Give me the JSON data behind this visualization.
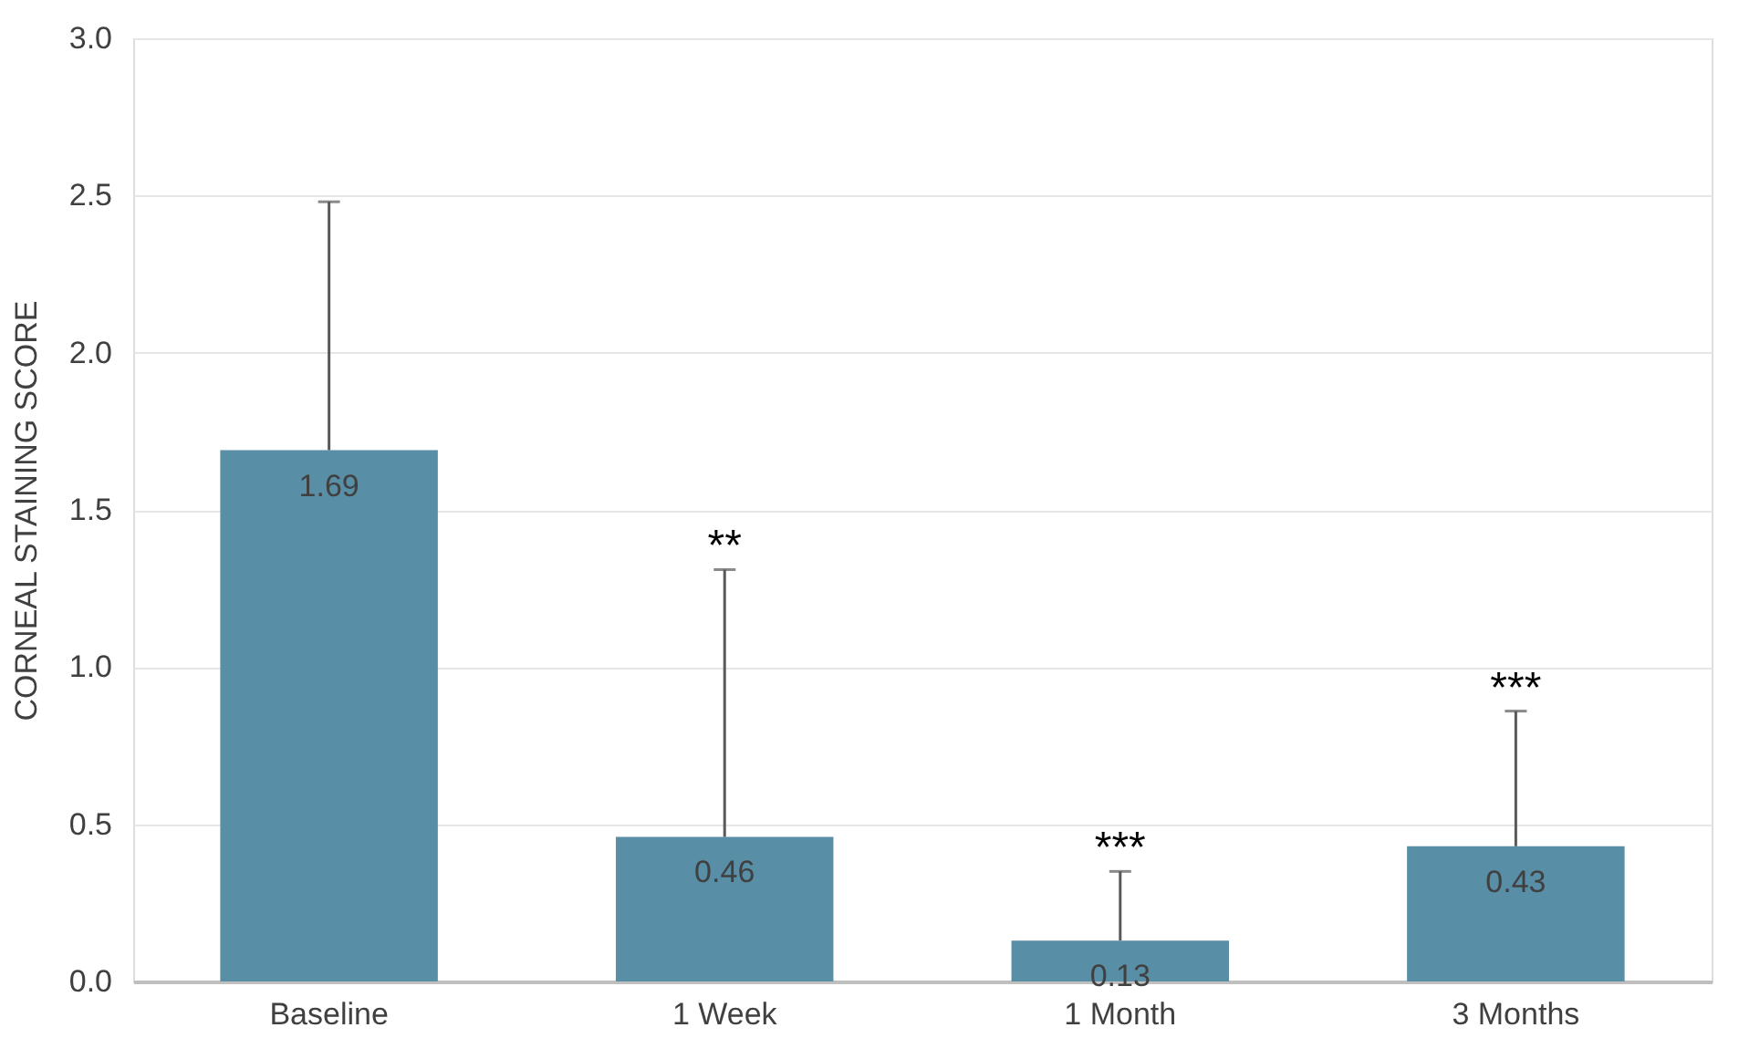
{
  "chart_data": {
    "type": "bar",
    "ylabel": "CORNEAL STAINING SCORE",
    "categories": [
      "Baseline",
      "1 Week",
      "1 Month",
      "3 Months"
    ],
    "values": [
      1.69,
      0.46,
      0.13,
      0.43
    ],
    "color": "#588ea6",
    "errors": [
      [
        1.69,
        2.48
      ],
      [
        0.46,
        1.31
      ],
      [
        0.13,
        0.35
      ],
      [
        0.43,
        0.86
      ]
    ],
    "data_labels": true,
    "ylim": [
      0,
      3.0
    ],
    "yticks": [
      {
        "value": 0,
        "label": "0.0"
      },
      {
        "value": 0.5,
        "label": "0.5"
      },
      {
        "value": 1.0,
        "label": "1.0"
      },
      {
        "value": 1.5,
        "label": "1.5"
      },
      {
        "value": 2.0,
        "label": "2.0"
      },
      {
        "value": 2.5,
        "label": "2.5"
      },
      {
        "value": 3.0,
        "label": "3.0"
      }
    ],
    "grid": "y",
    "annotations": [
      {
        "text": "**",
        "x": "1 Week",
        "y": 1.31
      },
      {
        "text": "***",
        "x": "1 Month",
        "y": 0.35
      },
      {
        "text": "***",
        "x": "3 Months",
        "y": 0.86
      }
    ]
  }
}
